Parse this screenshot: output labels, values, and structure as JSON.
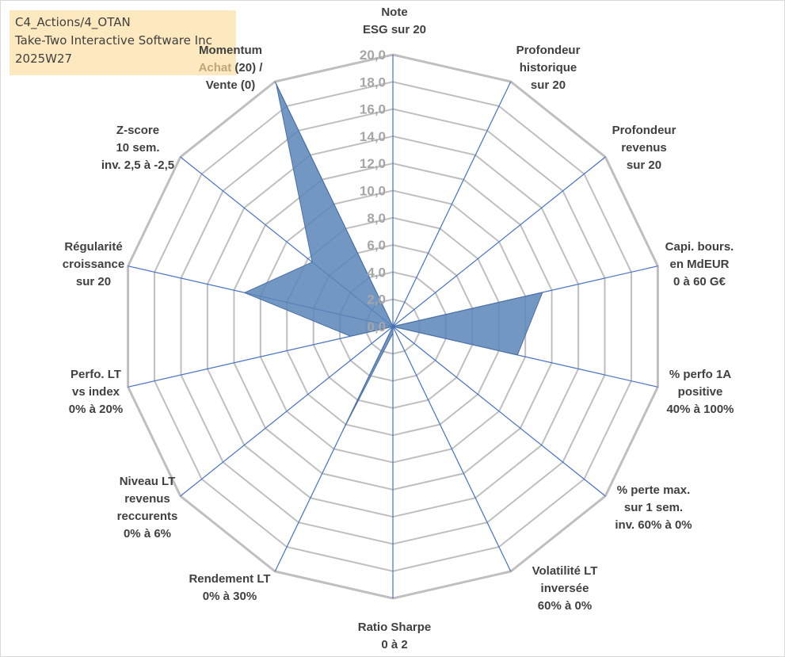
{
  "info_box": {
    "lines": [
      "C4_Actions/4_OTAN",
      "Take-Two Interactive Software Inc",
      "2025W27"
    ]
  },
  "colors": {
    "grid": "#bfbfbf",
    "spoke": "#4472c4",
    "fill": "#5b85b8",
    "fill_stroke": "#4a6fa5",
    "label": "#404040",
    "tick": "#a6a6a6",
    "info_bg": "#fde9bf",
    "accent": "#bfa675"
  },
  "chart_data": {
    "type": "radar",
    "rmin": 0,
    "rmax": 20,
    "ticks": [
      "0,0",
      "2,0",
      "4,0",
      "6,0",
      "8,0",
      "10,0",
      "12,0",
      "14,0",
      "16,0",
      "18,0",
      "20,0"
    ],
    "tick_values": [
      0,
      2,
      4,
      6,
      8,
      10,
      12,
      14,
      16,
      18,
      20
    ],
    "grid_levels": [
      2,
      4,
      6,
      8,
      10,
      12,
      14,
      16,
      18,
      20
    ],
    "axes": [
      {
        "lines": [
          "Note",
          "ESG sur 20"
        ]
      },
      {
        "lines": [
          "Profondeur",
          "historique",
          "sur 20"
        ]
      },
      {
        "lines": [
          "Profondeur",
          "revenus",
          "sur 20"
        ]
      },
      {
        "lines": [
          "Capi. bours.",
          "en MdEUR",
          "0 à 60 G€"
        ]
      },
      {
        "lines": [
          "% perfo 1A",
          "positive",
          "40% à 100%"
        ]
      },
      {
        "lines": [
          "% perte max.",
          "sur 1 sem.",
          "inv. 60% à 0%"
        ]
      },
      {
        "lines": [
          "Volatilité LT",
          "inversée",
          "60% à 0%"
        ]
      },
      {
        "lines": [
          "Ratio Sharpe",
          "0 à 2"
        ]
      },
      {
        "lines": [
          "Rendement LT",
          "0% à 30%"
        ]
      },
      {
        "lines": [
          "Niveau LT",
          "revenus",
          "reccurents",
          "0% à 6%"
        ]
      },
      {
        "lines": [
          "Perfo. LT",
          "vs index",
          "0% à 20%"
        ]
      },
      {
        "lines": [
          "Régularité",
          "croissance",
          "sur 20"
        ]
      },
      {
        "lines": [
          "Z-score",
          "10 sem.",
          "inv. 2,5 à -2,5"
        ]
      },
      {
        "lines": [
          "Momentum",
          "Achat",
          "(20) /",
          "Vente (0)"
        ]
      }
    ],
    "series": [
      {
        "values": [
          0,
          0,
          0,
          11.3,
          9.4,
          0,
          0,
          0.5,
          8.5,
          0,
          3.2,
          11.2,
          7.6,
          19.8
        ]
      }
    ]
  }
}
